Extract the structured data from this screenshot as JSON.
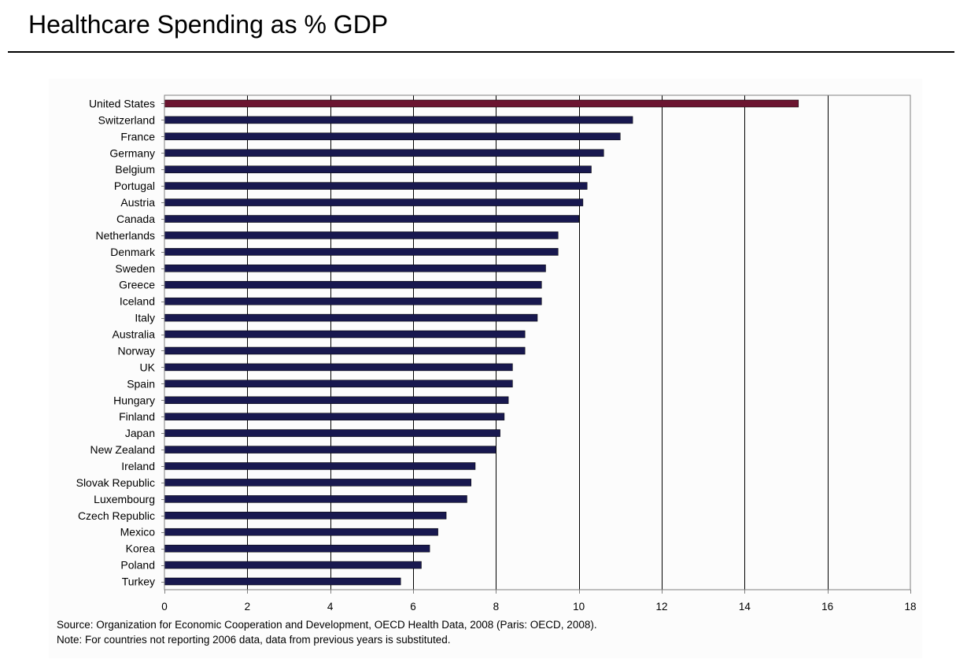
{
  "title": "Healthcare Spending as % GDP",
  "notes": {
    "source": "Source: Organization for Economic Cooperation and Development, OECD Health Data, 2008 (Paris: OECD, 2008).",
    "note": "Note: For countries not reporting 2006 data, data from previous years is substituted."
  },
  "colors": {
    "bar": "#18184f",
    "highlight": "#6b1530",
    "grid": "#000000"
  },
  "chart_data": {
    "type": "bar",
    "orientation": "horizontal",
    "title": "Healthcare Spending as % GDP",
    "xlabel": "",
    "ylabel": "",
    "xlim": [
      0,
      18
    ],
    "xticks": [
      0,
      2,
      4,
      6,
      8,
      10,
      12,
      14,
      16,
      18
    ],
    "grid": true,
    "highlight_category": "United States",
    "categories": [
      "United States",
      "Switzerland",
      "France",
      "Germany",
      "Belgium",
      "Portugal",
      "Austria",
      "Canada",
      "Netherlands",
      "Denmark",
      "Sweden",
      "Greece",
      "Iceland",
      "Italy",
      "Australia",
      "Norway",
      "UK",
      "Spain",
      "Hungary",
      "Finland",
      "Japan",
      "New Zealand",
      "Ireland",
      "Slovak Republic",
      "Luxembourg",
      "Czech Republic",
      "Mexico",
      "Korea",
      "Poland",
      "Turkey"
    ],
    "values": [
      15.3,
      11.3,
      11.0,
      10.6,
      10.3,
      10.2,
      10.1,
      10.0,
      9.5,
      9.5,
      9.2,
      9.1,
      9.1,
      9.0,
      8.7,
      8.7,
      8.4,
      8.4,
      8.3,
      8.2,
      8.1,
      8.0,
      7.5,
      7.4,
      7.3,
      6.8,
      6.6,
      6.4,
      6.2,
      5.7
    ]
  }
}
